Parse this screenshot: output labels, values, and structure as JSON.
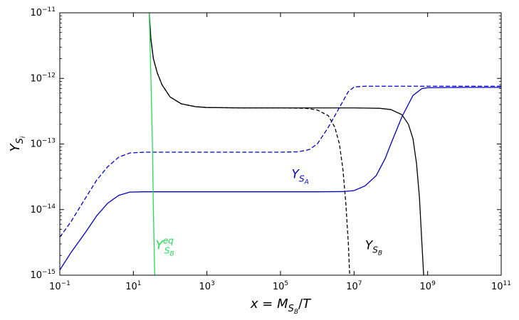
{
  "chart_data": {
    "type": "line",
    "title": "",
    "xlabel": "x = M_{S_B}/T",
    "ylabel": "Y_{S_i}",
    "xscale": "log",
    "yscale": "log",
    "xlim": [
      0.1,
      100000000000.0
    ],
    "ylim": [
      1e-15,
      1e-11
    ],
    "grid": false,
    "x_ticks": [
      {
        "value": 0.1,
        "base": "10",
        "exp": "−1"
      },
      {
        "value": 10,
        "base": "10",
        "exp": "1"
      },
      {
        "value": 1000,
        "base": "10",
        "exp": "3"
      },
      {
        "value": 100000,
        "base": "10",
        "exp": "5"
      },
      {
        "value": 10000000,
        "base": "10",
        "exp": "7"
      },
      {
        "value": 1000000000,
        "base": "10",
        "exp": "9"
      },
      {
        "value": 100000000000,
        "base": "10",
        "exp": "11"
      }
    ],
    "y_ticks": [
      {
        "value": 1e-15,
        "base": "10",
        "exp": "−15"
      },
      {
        "value": 1e-14,
        "base": "10",
        "exp": "−14"
      },
      {
        "value": 1e-13,
        "base": "10",
        "exp": "−13"
      },
      {
        "value": 1e-12,
        "base": "10",
        "exp": "−12"
      },
      {
        "value": 1e-11,
        "base": "10",
        "exp": "−11"
      }
    ],
    "annotations": [
      {
        "id": "ysa",
        "main": "Y",
        "sub": "S",
        "subsub": "A",
        "sup": "",
        "color": "#0000cc",
        "x": 200000,
        "y": 3e-14
      },
      {
        "id": "ysb",
        "main": "Y",
        "sub": "S",
        "subsub": "B",
        "sup": "",
        "color": "#000000",
        "x": 20000000,
        "y": 2.5e-15
      },
      {
        "id": "ysbeq",
        "main": "Y",
        "sub": "S",
        "subsub": "B",
        "sup": "eq",
        "color": "#22dd55",
        "x": 40,
        "y": 2.5e-15
      }
    ],
    "series": [
      {
        "id": "ysa-solid",
        "color": "#0000cc",
        "dash": "none",
        "points": [
          [
            0.1,
            1.2e-15
          ],
          [
            0.2,
            2.2e-15
          ],
          [
            0.5,
            4.5e-15
          ],
          [
            1,
            8e-15
          ],
          [
            2,
            1.25e-14
          ],
          [
            4,
            1.65e-14
          ],
          [
            8,
            1.85e-14
          ],
          [
            20,
            1.87e-14
          ],
          [
            100,
            1.87e-14
          ],
          [
            10000.0,
            1.87e-14
          ],
          [
            1000000.0,
            1.87e-14
          ],
          [
            5000000.0,
            1.88e-14
          ],
          [
            10000000.0,
            1.95e-14
          ],
          [
            20000000.0,
            2.3e-14
          ],
          [
            40000000.0,
            3.3e-14
          ],
          [
            70000000.0,
            6e-14
          ],
          [
            100000000.0,
            1e-13
          ],
          [
            200000000.0,
            2.6e-13
          ],
          [
            400000000.0,
            5.5e-13
          ],
          [
            700000000.0,
            7e-13
          ],
          [
            1000000000.0,
            7.2e-13
          ],
          [
            10000000000.0,
            7.3e-13
          ],
          [
            100000000000.0,
            7.3e-13
          ]
        ]
      },
      {
        "id": "ysa-dashed",
        "color": "#0000cc",
        "dash": "6,3",
        "points": [
          [
            0.1,
            3.8e-15
          ],
          [
            0.2,
            6.5e-15
          ],
          [
            0.5,
            1.5e-14
          ],
          [
            1,
            2.8e-14
          ],
          [
            2,
            4.5e-14
          ],
          [
            4,
            6.3e-14
          ],
          [
            8,
            7.3e-14
          ],
          [
            20,
            7.5e-14
          ],
          [
            100,
            7.5e-14
          ],
          [
            10000.0,
            7.5e-14
          ],
          [
            100000.0,
            7.5e-14
          ],
          [
            300000.0,
            7.6e-14
          ],
          [
            600000.0,
            8.2e-14
          ],
          [
            1000000.0,
            1e-13
          ],
          [
            2000000.0,
            1.8e-13
          ],
          [
            4000000.0,
            3.6e-13
          ],
          [
            7000000.0,
            6.3e-13
          ],
          [
            10000000.0,
            7.4e-13
          ],
          [
            20000000.0,
            7.6e-13
          ],
          [
            100000000000.0,
            7.6e-13
          ]
        ]
      },
      {
        "id": "ysb-solid",
        "color": "#000000",
        "dash": "none",
        "points": [
          [
            27,
            1e-11
          ],
          [
            30,
            4e-12
          ],
          [
            35,
            2e-12
          ],
          [
            45,
            1.2e-12
          ],
          [
            60,
            8e-13
          ],
          [
            100,
            5.2e-13
          ],
          [
            200,
            4.1e-13
          ],
          [
            500,
            3.7e-13
          ],
          [
            1000,
            3.6e-13
          ],
          [
            10000.0,
            3.55e-13
          ],
          [
            1000000.0,
            3.55e-13
          ],
          [
            10000000.0,
            3.55e-13
          ],
          [
            50000000.0,
            3.5e-13
          ],
          [
            100000000.0,
            3.35e-13
          ],
          [
            200000000.0,
            2.8e-13
          ],
          [
            300000000.0,
            2e-13
          ],
          [
            400000000.0,
            1.2e-13
          ],
          [
            500000000.0,
            5e-14
          ],
          [
            600000000.0,
            1.5e-14
          ],
          [
            700000000.0,
            3e-15
          ],
          [
            780000000.0,
            1e-15
          ]
        ]
      },
      {
        "id": "ysb-dashed",
        "color": "#000000",
        "dash": "5,3",
        "points": [
          [
            30,
            4e-12
          ],
          [
            35,
            2e-12
          ],
          [
            45,
            1.2e-12
          ],
          [
            60,
            8e-13
          ],
          [
            100,
            5.2e-13
          ],
          [
            200,
            4.1e-13
          ],
          [
            500,
            3.7e-13
          ],
          [
            1000,
            3.6e-13
          ],
          [
            10000.0,
            3.55e-13
          ],
          [
            100000.0,
            3.55e-13
          ],
          [
            500000.0,
            3.5e-13
          ],
          [
            1000000.0,
            3.3e-13
          ],
          [
            2000000.0,
            2.7e-13
          ],
          [
            3000000.0,
            1.8e-13
          ],
          [
            4000000.0,
            1e-13
          ],
          [
            5000000.0,
            4e-14
          ],
          [
            6000000.0,
            1.2e-14
          ],
          [
            7000000.0,
            3e-15
          ],
          [
            7600000.0,
            1e-15
          ]
        ]
      },
      {
        "id": "ysb-eq",
        "color": "#22dd55",
        "dash": "none",
        "points": [
          [
            27,
            1e-11
          ],
          [
            30,
            1e-12
          ],
          [
            33,
            1e-13
          ],
          [
            35,
            1e-14
          ],
          [
            38,
            1e-15
          ]
        ]
      }
    ]
  }
}
